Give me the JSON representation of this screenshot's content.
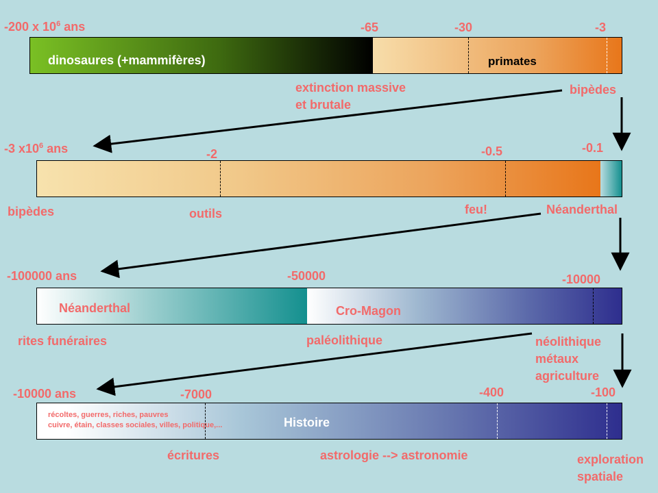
{
  "row1": {
    "left_label_main": "-200 x 10",
    "left_label_exp": "6",
    "left_label_unit": " ans",
    "ticks": [
      "-65",
      "-30",
      "-3"
    ],
    "bar_text_1": "dinosaures (+mammifères)",
    "bar_text_2": "primates",
    "below_1_line1": "extinction massive",
    "below_1_line2": "et brutale",
    "below_2": "bipèdes"
  },
  "row2": {
    "left_label_main": "-3 x10",
    "left_label_exp": "6",
    "left_label_unit": " ans",
    "ticks": [
      "-2",
      "-0.5",
      "-0.1"
    ],
    "below": [
      "bipèdes",
      "outils",
      "feu!",
      "Néanderthal"
    ]
  },
  "row3": {
    "left_label": "-100000 ans",
    "ticks": [
      "-50000",
      "-10000"
    ],
    "bar_text_1": "Néanderthal",
    "bar_text_2": "Cro-Magon",
    "below_1": "rites funéraires",
    "below_2": "paléolithique",
    "below_3_lines": [
      "néolithique",
      "métaux",
      "agriculture"
    ]
  },
  "row4": {
    "left_label": "-10000 ans",
    "ticks": [
      "-7000",
      "-400",
      "-100"
    ],
    "small_text_1": "récoltes, guerres, riches, pauvres",
    "small_text_2": "cuivre, étain, classes sociales, villes, politique,...",
    "bar_text": "Histoire",
    "below_1": "écritures",
    "below_2": "astrologie --> astronomie",
    "below_3_line1": "exploration",
    "below_3_line2": "spatiale"
  },
  "colors": {
    "label": "#f26a6a",
    "background": "#b9dce0",
    "dino_start": "#7ac024",
    "primate_end": "#e8761a",
    "teal": "#14908f",
    "navy": "#2e2e8e"
  }
}
